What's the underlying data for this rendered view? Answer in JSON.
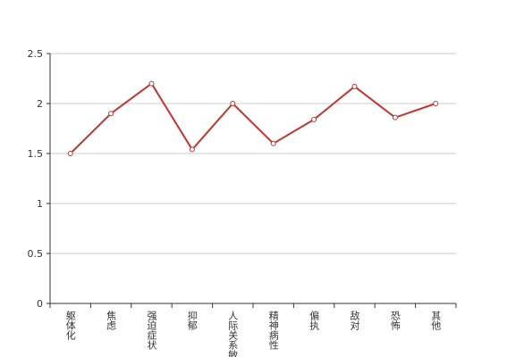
{
  "chart_data": {
    "type": "line",
    "categories": [
      "躯体化",
      "焦虑",
      "强迫症状",
      "抑郁",
      "人际关系敏感",
      "精神病性",
      "偏执",
      "敌对",
      "恐怖",
      "其他"
    ],
    "series": [
      {
        "color": "#c23531",
        "values": [
          1.5,
          1.9,
          2.2,
          1.54,
          2.0,
          1.6,
          1.84,
          2.17,
          1.86,
          2.0
        ]
      }
    ],
    "ylim": [
      0,
      2.5
    ],
    "yticks": [
      0,
      0.5,
      1,
      1.5,
      2,
      2.5
    ],
    "grid": true
  }
}
